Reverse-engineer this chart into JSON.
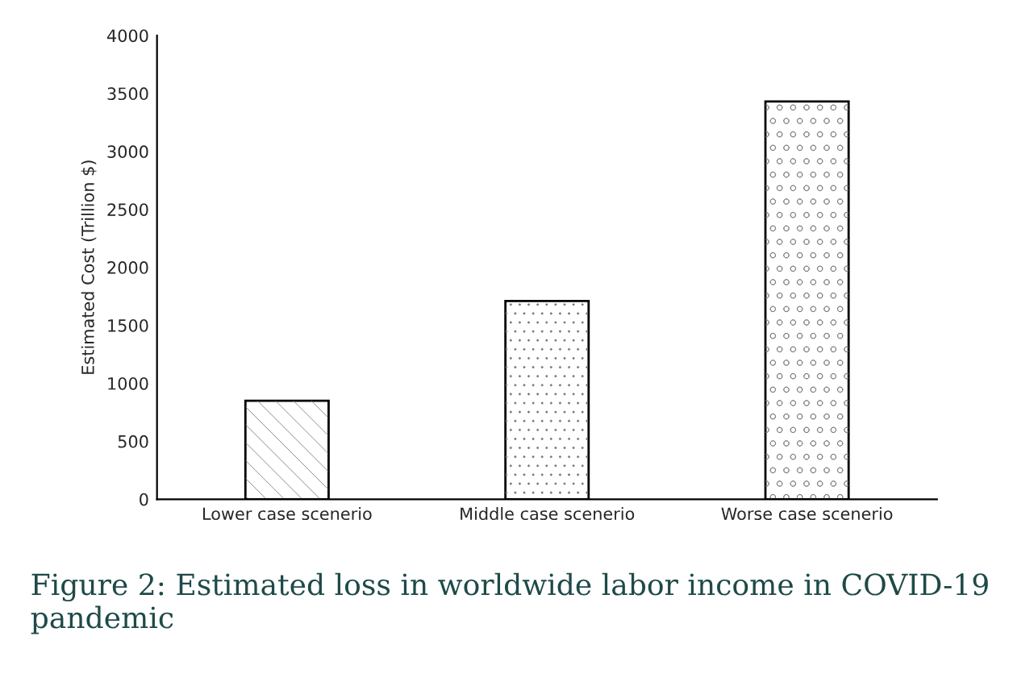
{
  "chart_data": {
    "type": "bar",
    "categories": [
      "Lower case scenerio",
      "Middle case scenerio",
      "Worse case scenerio"
    ],
    "values": [
      850,
      1710,
      3430
    ],
    "colors": [
      "#ffffff",
      "#ffffff",
      "#ffffff"
    ],
    "ylabel": "Estimated Cost (Trillion $)",
    "ylim": [
      0,
      4000
    ],
    "yticks": [
      0,
      500,
      1000,
      1500,
      2000,
      2500,
      3000,
      3500,
      4000
    ],
    "grid": false,
    "legend": false,
    "annotations": [
      "Figure 2: Estimated loss in worldwide labor income in COVID-19 pandemic"
    ]
  }
}
